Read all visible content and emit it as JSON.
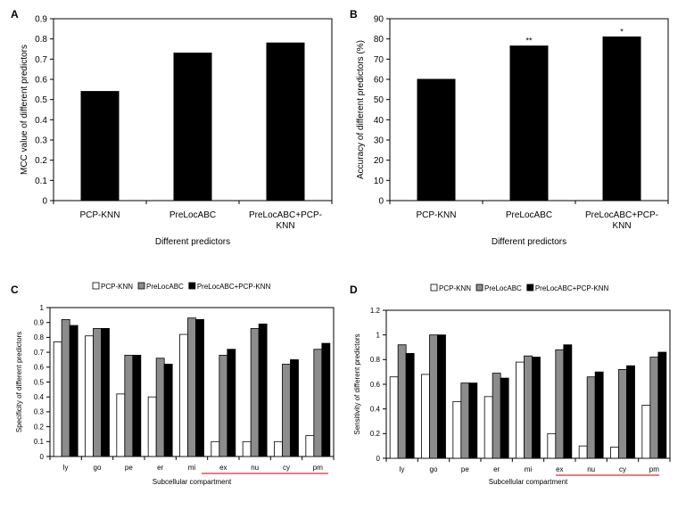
{
  "chart_data": [
    {
      "panel_label": "A",
      "type": "bar",
      "categories": [
        "PCP-KNN",
        "PreLocABC",
        "PreLocABC+PCP-KNN"
      ],
      "category_lines": [
        [
          "PCP-KNN"
        ],
        [
          "PreLocABC"
        ],
        [
          "PreLocABC+PCP-",
          "KNN"
        ]
      ],
      "values": [
        0.54,
        0.73,
        0.78
      ],
      "ylabel": "MCC value of different predictors",
      "xlabel": "Different predictors",
      "ylim": [
        0,
        0.9
      ],
      "yticks": [
        "0",
        "0.1",
        "0.2",
        "0.3",
        "0.4",
        "0.5",
        "0.6",
        "0.7",
        "0.8",
        "0.9"
      ],
      "bar_color": "#000000",
      "annotations": []
    },
    {
      "panel_label": "B",
      "type": "bar",
      "categories": [
        "PCP-KNN",
        "PreLocABC",
        "PreLocABC+PCP-KNN"
      ],
      "category_lines": [
        [
          "PCP-KNN"
        ],
        [
          "PreLocABC"
        ],
        [
          "PreLocABC+PCP-",
          "KNN"
        ]
      ],
      "values": [
        60,
        76.5,
        81
      ],
      "ylabel": "Accuracy of different predictors (%)",
      "xlabel": "Different predictors",
      "ylim": [
        0,
        90
      ],
      "yticks": [
        "0",
        "10",
        "20",
        "30",
        "40",
        "50",
        "60",
        "70",
        "80",
        "90"
      ],
      "bar_color": "#000000",
      "annotations": [
        "",
        "**",
        "*"
      ]
    },
    {
      "panel_label": "C",
      "type": "bar",
      "categories": [
        "ly",
        "go",
        "pe",
        "er",
        "mi",
        "ex",
        "nu",
        "cy",
        "pm"
      ],
      "series": [
        {
          "name": "PCP-KNN",
          "color": "#ffffff",
          "values": [
            0.77,
            0.81,
            0.42,
            0.4,
            0.82,
            0.1,
            0.1,
            0.1,
            0.14
          ]
        },
        {
          "name": "PreLocABC",
          "color": "#8c8c8c",
          "values": [
            0.92,
            0.86,
            0.68,
            0.66,
            0.93,
            0.68,
            0.86,
            0.62,
            0.72
          ]
        },
        {
          "name": "PreLocABC+PCP-KNN",
          "color": "#000000",
          "values": [
            0.88,
            0.86,
            0.68,
            0.62,
            0.92,
            0.72,
            0.89,
            0.65,
            0.76
          ]
        }
      ],
      "ylabel": "Specificity of different predictors",
      "xlabel": "Subcellular compartment",
      "ylim": [
        0,
        1
      ],
      "yticks": [
        "0",
        "0.1",
        "0.2",
        "0.3",
        "0.4",
        "0.5",
        "0.6",
        "0.7",
        "0.8",
        "0.9",
        "1"
      ],
      "legend_position": "top",
      "highlight_categories": [
        "ex",
        "nu",
        "cy",
        "pm"
      ],
      "highlight_color": "#e05060"
    },
    {
      "panel_label": "D",
      "type": "bar",
      "categories": [
        "ly",
        "go",
        "pe",
        "er",
        "mi",
        "ex",
        "nu",
        "cy",
        "pm"
      ],
      "series": [
        {
          "name": "PCP-KNN",
          "color": "#ffffff",
          "values": [
            0.66,
            0.68,
            0.46,
            0.5,
            0.78,
            0.2,
            0.1,
            0.09,
            0.43
          ]
        },
        {
          "name": "PreLocABC",
          "color": "#8c8c8c",
          "values": [
            0.92,
            1.0,
            0.61,
            0.69,
            0.83,
            0.88,
            0.66,
            0.72,
            0.82
          ]
        },
        {
          "name": "PreLocABC+PCP-KNN",
          "color": "#000000",
          "values": [
            0.85,
            1.0,
            0.61,
            0.65,
            0.82,
            0.92,
            0.7,
            0.75,
            0.86
          ]
        }
      ],
      "ylabel": "Sensitivity of different predictors",
      "xlabel": "Subcellular compartment",
      "ylim": [
        0,
        1.2
      ],
      "yticks": [
        "0",
        "0.2",
        "0.4",
        "0.6",
        "0.8",
        "1",
        "1.2"
      ],
      "legend_position": "top",
      "highlight_categories": [
        "ex",
        "nu",
        "cy",
        "pm"
      ],
      "highlight_color": "#e05060"
    }
  ]
}
